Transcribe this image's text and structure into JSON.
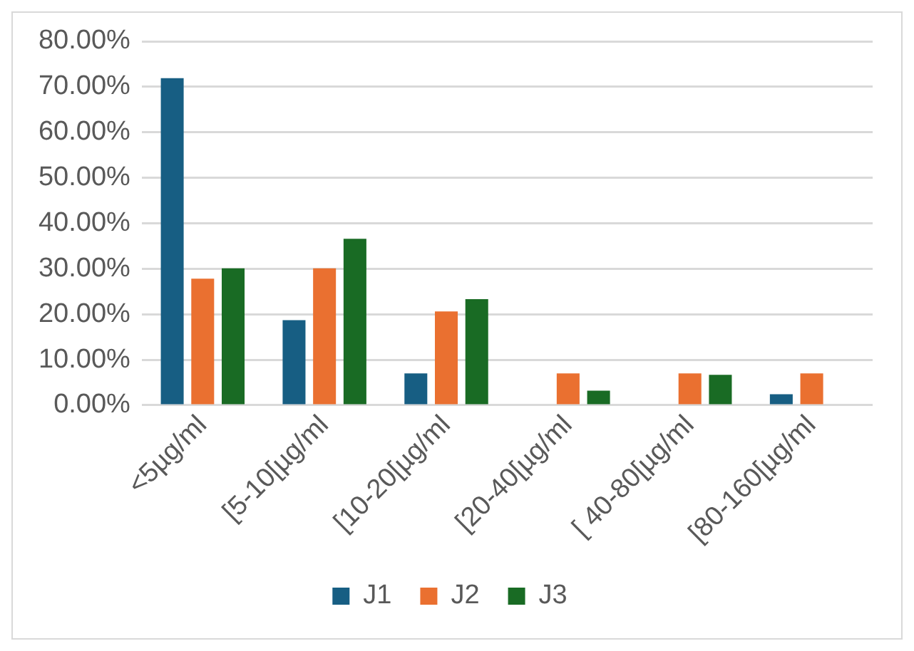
{
  "chart_data": {
    "type": "bar",
    "categories": [
      "<5µg/ml",
      "[5-10[µg/ml",
      "[10-20[µg/ml",
      "[20-40[µg/ml",
      "[ 40-80[µg/ml",
      "[80-160[µg/ml"
    ],
    "series": [
      {
        "name": "J1",
        "color": "#175e83",
        "values": [
          71.9,
          18.7,
          7.0,
          0,
          0,
          2.4
        ]
      },
      {
        "name": "J2",
        "color": "#ea7030",
        "values": [
          27.8,
          30.1,
          20.6,
          7.0,
          7.0,
          7.0
        ]
      },
      {
        "name": "J3",
        "color": "#196b24",
        "values": [
          30.1,
          36.6,
          23.3,
          3.2,
          6.7,
          0
        ]
      }
    ],
    "ylim": [
      0,
      80
    ],
    "yticks": [
      {
        "value": 0,
        "label": "0.00%"
      },
      {
        "value": 10,
        "label": "10.00%"
      },
      {
        "value": 20,
        "label": "20.00%"
      },
      {
        "value": 30,
        "label": "30.00%"
      },
      {
        "value": 40,
        "label": "40.00%"
      },
      {
        "value": 50,
        "label": "50.00%"
      },
      {
        "value": 60,
        "label": "60.00%"
      },
      {
        "value": 70,
        "label": "70.00%"
      },
      {
        "value": 80,
        "label": "80.00%"
      }
    ],
    "grid": "y",
    "legend": "bottom"
  }
}
